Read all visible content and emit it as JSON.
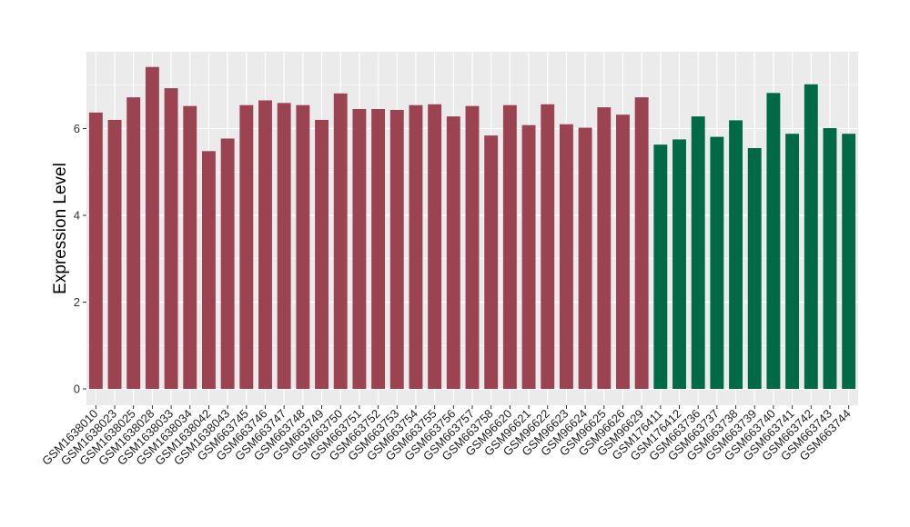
{
  "chart_data": {
    "type": "bar",
    "title": "",
    "xlabel": "",
    "ylabel": "Expression Level",
    "ylim": [
      0,
      7.6
    ],
    "yticks": [
      0,
      2,
      4,
      6
    ],
    "grid": true,
    "legend": "none",
    "colors": {
      "group1": "#9b4350",
      "group2": "#006a47",
      "panel": "#ebebeb",
      "grid": "#ffffff"
    },
    "categories": [
      "GSM1638010",
      "GSM1638023",
      "GSM1638025",
      "GSM1638028",
      "GSM1638033",
      "GSM1638034",
      "GSM1638042",
      "GSM1638043",
      "GSM663745",
      "GSM663746",
      "GSM663747",
      "GSM663748",
      "GSM663749",
      "GSM663750",
      "GSM663751",
      "GSM663752",
      "GSM663753",
      "GSM663754",
      "GSM663755",
      "GSM663756",
      "GSM663757",
      "GSM663758",
      "GSM96620",
      "GSM96621",
      "GSM96622",
      "GSM96623",
      "GSM96624",
      "GSM96625",
      "GSM96626",
      "GSM96629",
      "GSM176411",
      "GSM176412",
      "GSM663736",
      "GSM663737",
      "GSM663738",
      "GSM663739",
      "GSM663740",
      "GSM663741",
      "GSM663742",
      "GSM663743",
      "GSM663744"
    ],
    "values": [
      6.37,
      6.2,
      6.72,
      7.42,
      6.93,
      6.52,
      5.48,
      5.77,
      6.54,
      6.65,
      6.59,
      6.54,
      6.2,
      6.81,
      6.45,
      6.45,
      6.43,
      6.54,
      6.56,
      6.28,
      6.52,
      5.84,
      6.54,
      6.08,
      6.56,
      6.1,
      6.02,
      6.49,
      6.32,
      6.72,
      5.63,
      5.75,
      6.28,
      5.81,
      6.19,
      5.55,
      6.82,
      5.88,
      7.02,
      6.01,
      5.88
    ],
    "groups": [
      "group1",
      "group1",
      "group1",
      "group1",
      "group1",
      "group1",
      "group1",
      "group1",
      "group1",
      "group1",
      "group1",
      "group1",
      "group1",
      "group1",
      "group1",
      "group1",
      "group1",
      "group1",
      "group1",
      "group1",
      "group1",
      "group1",
      "group1",
      "group1",
      "group1",
      "group1",
      "group1",
      "group1",
      "group1",
      "group1",
      "group2",
      "group2",
      "group2",
      "group2",
      "group2",
      "group2",
      "group2",
      "group2",
      "group2",
      "group2",
      "group2"
    ]
  }
}
